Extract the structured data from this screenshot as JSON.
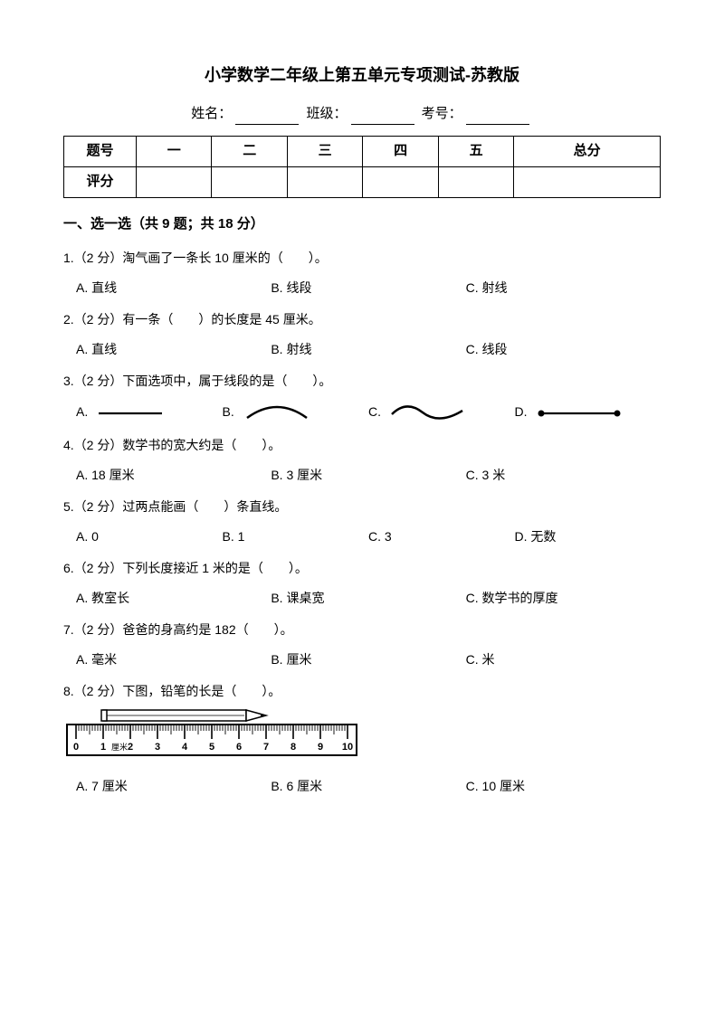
{
  "title": "小学数学二年级上第五单元专项测试-苏教版",
  "info": {
    "name_label": "姓名：",
    "class_label": "班级：",
    "id_label": "考号："
  },
  "score_table": {
    "row1_label": "题号",
    "cols": [
      "一",
      "二",
      "三",
      "四",
      "五",
      "总分"
    ],
    "row2_label": "评分"
  },
  "section1": {
    "heading": "一、选一选（共 9 题；共 18 分）"
  },
  "q1": {
    "text": "1.（2 分）淘气画了一条长 10 厘米的（　　）。",
    "A": "A. 直线",
    "B": "B. 线段",
    "C": "C. 射线"
  },
  "q2": {
    "text": "2.（2 分）有一条（　　）的长度是 45 厘米。",
    "A": "A. 直线",
    "B": "B. 射线",
    "C": "C. 线段"
  },
  "q3": {
    "text": "3.（2 分）下面选项中，属于线段的是（　　）。",
    "A": "A.",
    "B": "B.",
    "C": "C.",
    "D": "D.",
    "shape_stroke": "#000000",
    "shape_width": 2.5,
    "dot_radius": 3.5
  },
  "q4": {
    "text": "4.（2 分）数学书的宽大约是（　　）。",
    "A": "A. 18 厘米",
    "B": "B. 3 厘米",
    "C": "C. 3 米"
  },
  "q5": {
    "text": "5.（2 分）过两点能画（　　）条直线。",
    "A": "A. 0",
    "B": "B. 1",
    "C": "C. 3",
    "D": "D. 无数"
  },
  "q6": {
    "text": "6.（2 分）下列长度接近 1 米的是（　　）。",
    "A": "A. 教室长",
    "B": "B. 课桌宽",
    "C": "C. 数学书的厚度"
  },
  "q7": {
    "text": "7.（2 分）爸爸的身高约是 182（　　）。",
    "A": "A. 毫米",
    "B": "B. 厘米",
    "C": "C. 米"
  },
  "q8": {
    "text": "8.（2 分）下图，铅笔的长是（　　）。",
    "A": "A. 7 厘米",
    "B": "B. 6 厘米",
    "C": "C. 10 厘米",
    "ruler": {
      "ticks": [
        "0",
        "1",
        "2",
        "3",
        "4",
        "5",
        "6",
        "7",
        "8",
        "9",
        "10"
      ],
      "unit_label": "厘米",
      "pencil_start_cm": 1,
      "pencil_end_cm": 7,
      "stroke": "#000000"
    }
  }
}
